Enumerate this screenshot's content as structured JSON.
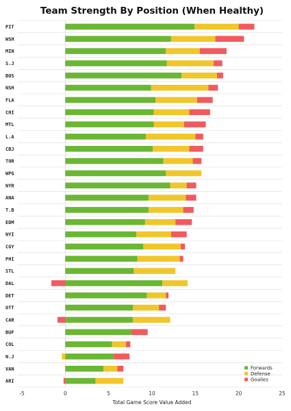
{
  "chart_data": {
    "type": "bar",
    "orientation": "horizontal",
    "stacked": true,
    "title": "Team Strength By Position (When Healthy)",
    "xlabel": "Total Game Score Value Added",
    "ylabel": "",
    "xlim": [
      -5,
      25
    ],
    "xticks": [
      -5,
      0,
      5,
      10,
      15,
      20,
      25
    ],
    "grid": "horizontal row lines",
    "legend_position": "bottom-right",
    "categories": [
      "PIT",
      "WSH",
      "MIN",
      "S.J",
      "BOS",
      "NSH",
      "FLA",
      "CHI",
      "MTL",
      "L.A",
      "CBJ",
      "TOR",
      "WPG",
      "NYR",
      "ANA",
      "T.B",
      "EDM",
      "NYI",
      "CGY",
      "PHI",
      "STL",
      "DAL",
      "DET",
      "OTT",
      "CAR",
      "BUF",
      "COL",
      "N.J",
      "VAN",
      "ARI"
    ],
    "series": [
      {
        "name": "Forwards",
        "color": "#6ab733",
        "values": [
          14.9,
          12.2,
          11.6,
          11.7,
          13.4,
          9.9,
          10.4,
          10.2,
          10.2,
          9.3,
          10.1,
          11.3,
          11.6,
          12.1,
          9.6,
          9.6,
          9.2,
          8.2,
          9.0,
          8.3,
          7.9,
          11.2,
          9.4,
          7.8,
          7.8,
          7.6,
          5.4,
          5.6,
          4.4,
          3.5
        ]
      },
      {
        "name": "Defense",
        "color": "#f0c62a",
        "values": [
          5.1,
          5.1,
          3.9,
          5.4,
          4.1,
          6.6,
          4.8,
          4.1,
          3.5,
          5.7,
          4.2,
          3.4,
          4.1,
          1.9,
          4.3,
          4.0,
          3.5,
          4.0,
          4.3,
          4.9,
          4.8,
          2.9,
          2.2,
          3.0,
          4.3,
          0.0,
          1.6,
          -0.4,
          1.6,
          3.2
        ]
      },
      {
        "name": "Goalies",
        "color": "#f25a5e",
        "values": [
          1.8,
          3.3,
          3.1,
          1.0,
          0.7,
          1.1,
          1.8,
          2.4,
          2.5,
          0.9,
          1.6,
          1.0,
          0.0,
          1.1,
          1.2,
          1.2,
          1.9,
          1.8,
          0.5,
          0.4,
          0.0,
          -1.6,
          0.3,
          0.8,
          -0.9,
          1.9,
          0.5,
          1.8,
          0.7,
          -0.2
        ]
      }
    ]
  }
}
